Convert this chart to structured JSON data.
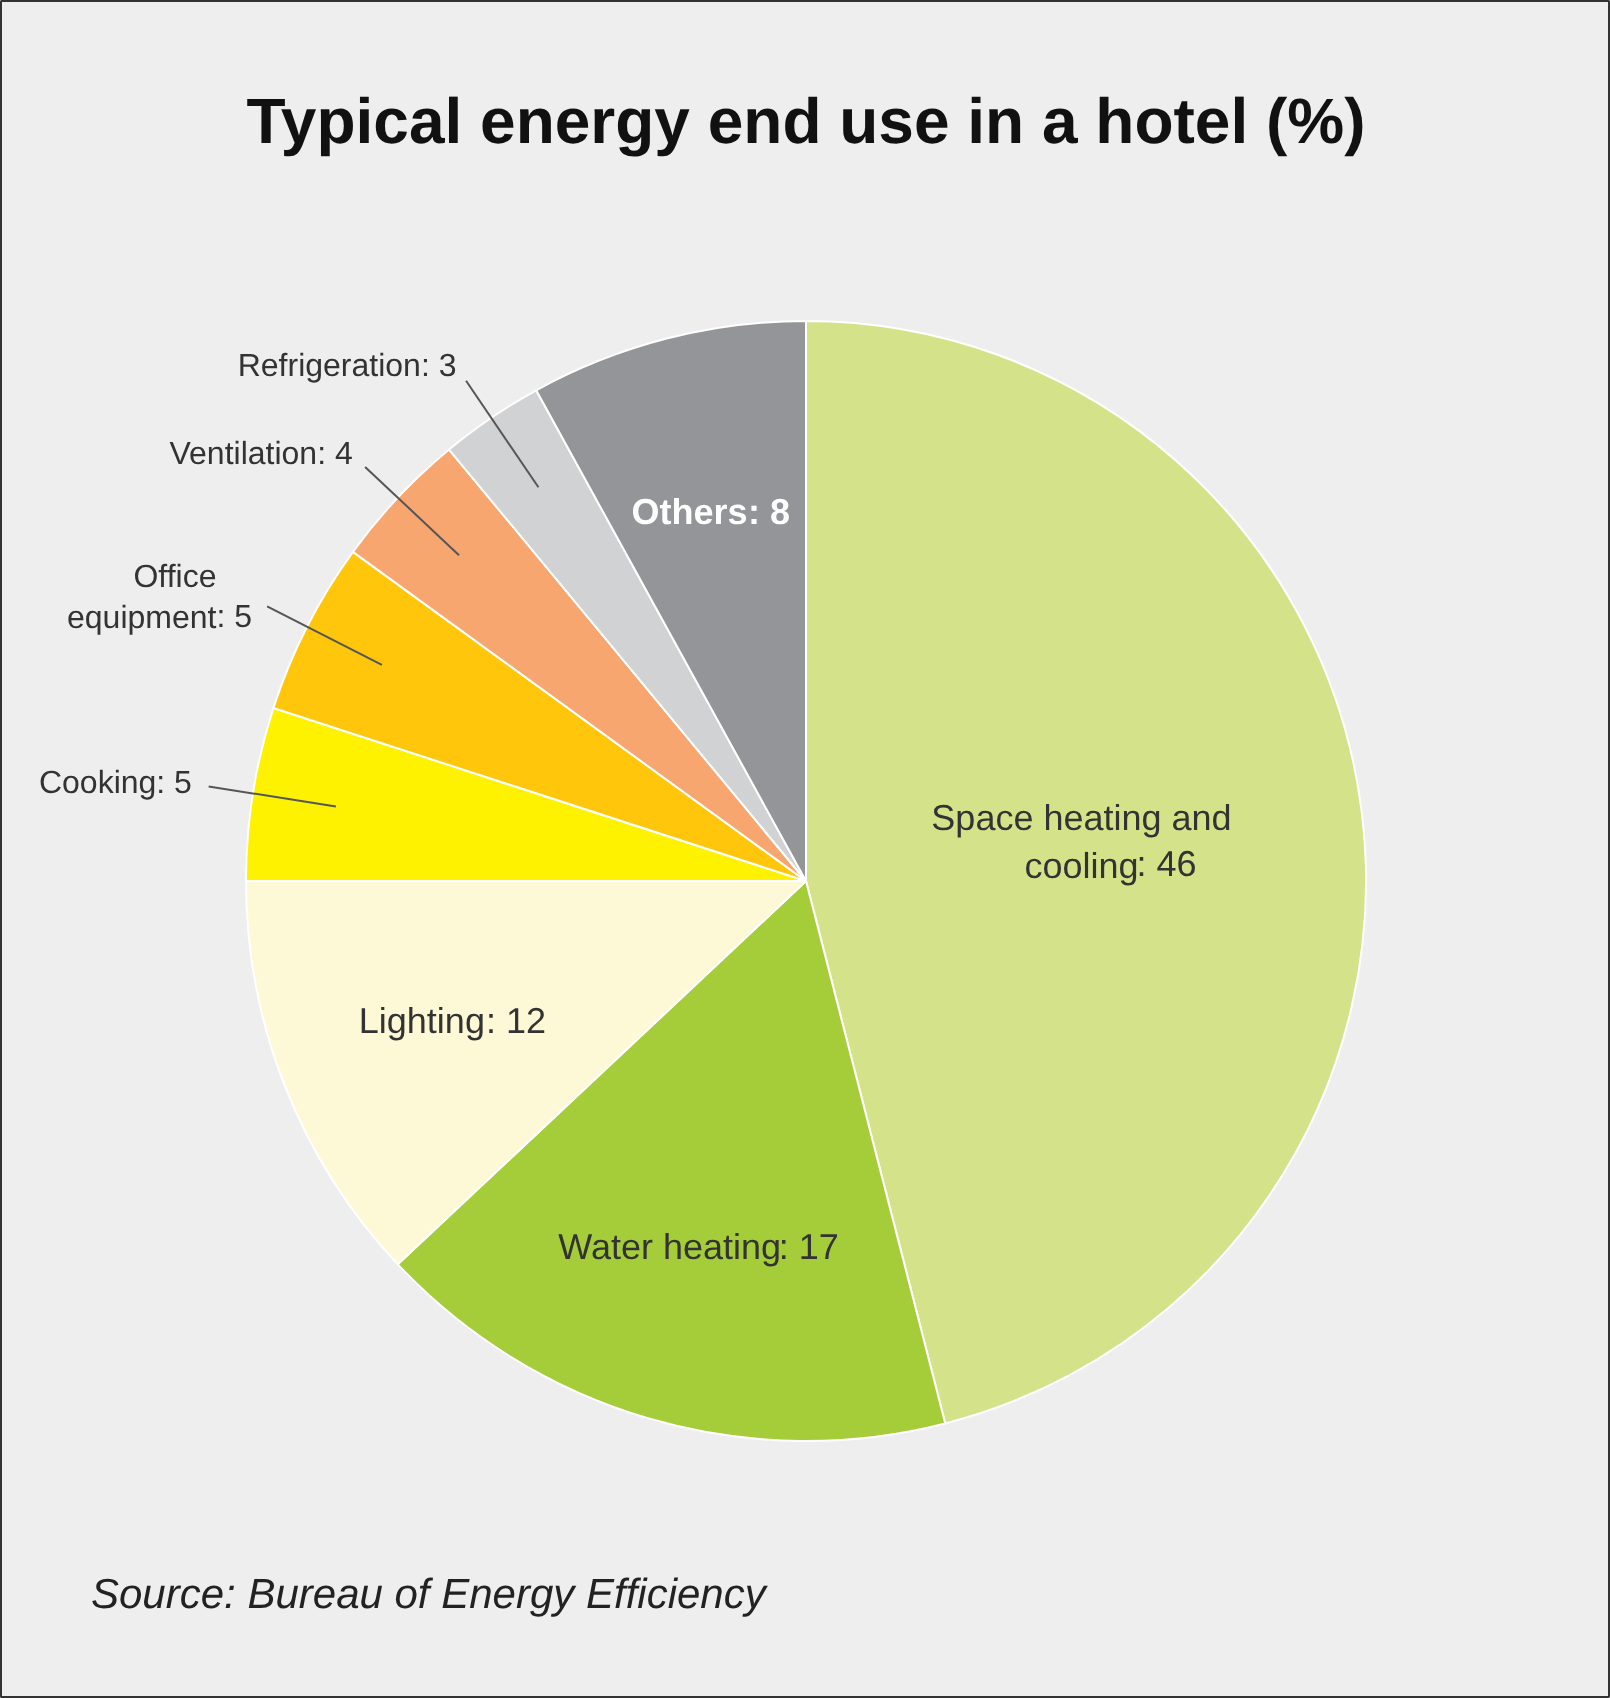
{
  "chart_data": {
    "type": "pie",
    "title": "Typical energy end use in a hotel (%)",
    "categories": [
      "Space heating and cooling",
      "Water heating",
      "Lighting",
      "Cooking",
      "Office equipment",
      "Ventilation",
      "Refrigeration",
      "Others"
    ],
    "values": [
      46,
      17,
      12,
      5,
      5,
      4,
      3,
      8
    ],
    "colors": [
      "#d4e38a",
      "#a5cd3a",
      "#fdf9d6",
      "#fff200",
      "#ffc60b",
      "#f7a66f",
      "#d1d2d4",
      "#939598"
    ],
    "value_labels": [
      ": 46",
      ": 17",
      ": 12",
      ": 5",
      ": 5",
      ": 4",
      ": 3",
      ": 8"
    ],
    "annotations": [
      "Source: Bureau of Energy Efficiency"
    ]
  }
}
